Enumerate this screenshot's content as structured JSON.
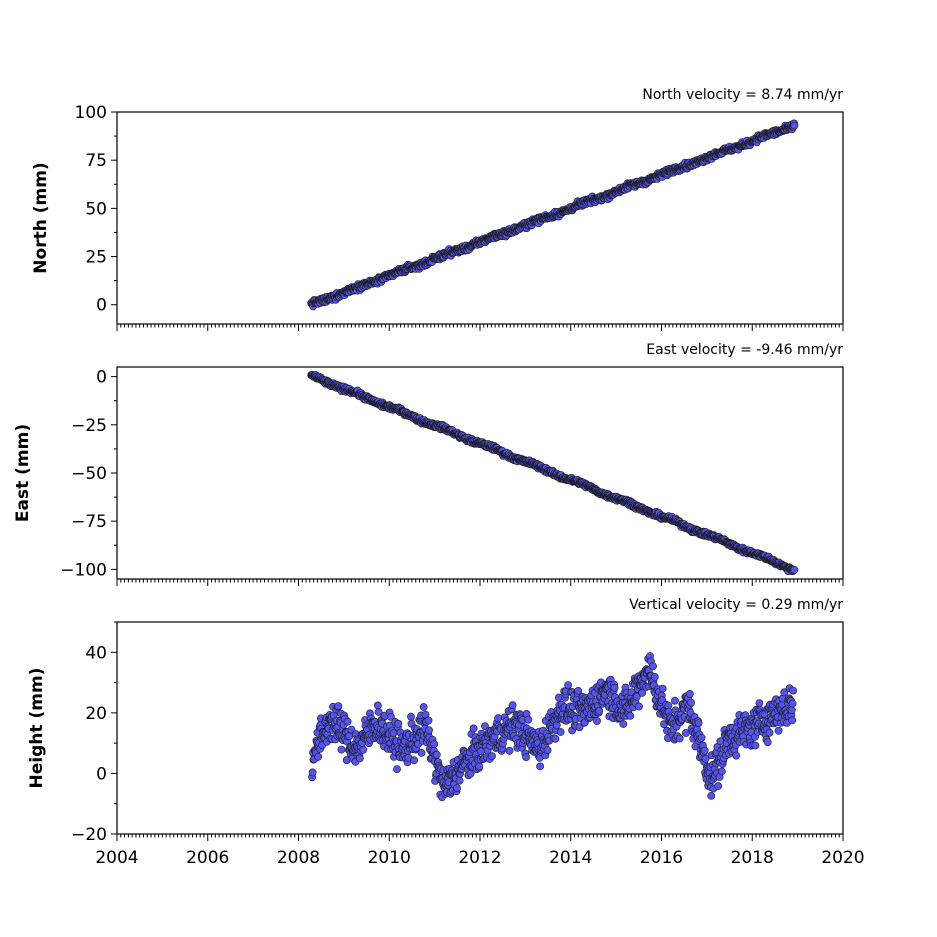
{
  "chart_data": [
    {
      "type": "scatter",
      "title": "North velocity = 8.74 mm/yr",
      "ylabel": "North (mm)",
      "xlabel": "",
      "xlim": [
        2004,
        2020
      ],
      "ylim": [
        -10,
        100
      ],
      "yticks": [
        0,
        25,
        50,
        75,
        100
      ],
      "ytick_labels": [
        "0",
        "25",
        "50",
        "75",
        "100"
      ],
      "grid": false,
      "marker_color": "#5555ee",
      "trend": {
        "x_start": 2008.28,
        "x_end": 2018.93,
        "y_start": 0.0,
        "slope": 8.74
      },
      "noise_amplitude": 1.5,
      "seasonal_amplitude": 0.4,
      "n_points": 1000
    },
    {
      "type": "scatter",
      "title": "East velocity = -9.46 mm/yr",
      "ylabel": "East (mm)",
      "xlabel": "",
      "xlim": [
        2004,
        2020
      ],
      "ylim": [
        -105,
        5
      ],
      "yticks": [
        0,
        -25,
        -50,
        -75,
        -100
      ],
      "ytick_labels": [
        "0",
        "−25",
        "−50",
        "−75",
        "−100"
      ],
      "grid": false,
      "marker_color": "#5555ee",
      "trend": {
        "x_start": 2008.28,
        "x_end": 2018.93,
        "y_start": 0.5,
        "slope": -9.46
      },
      "noise_amplitude": 1.2,
      "seasonal_amplitude": 0.5,
      "n_points": 1000
    },
    {
      "type": "scatter",
      "title": "Vertical velocity = 0.29 mm/yr",
      "ylabel": "Height (mm)",
      "xlabel": "",
      "xlim": [
        2004,
        2020
      ],
      "ylim": [
        -20,
        50
      ],
      "yticks": [
        -20,
        0,
        20,
        40
      ],
      "ytick_labels": [
        "−20",
        "0",
        "20",
        "40"
      ],
      "xticks": [
        2004,
        2006,
        2008,
        2010,
        2012,
        2014,
        2016,
        2018,
        2020
      ],
      "xtick_labels": [
        "2004",
        "2006",
        "2008",
        "2010",
        "2012",
        "2014",
        "2016",
        "2018",
        "2020"
      ],
      "grid": false,
      "marker_color": "#5555ee",
      "envelope": {
        "x": [
          2008.3,
          2008.7,
          2009.3,
          2009.7,
          2010.3,
          2010.8,
          2011.2,
          2011.7,
          2012.3,
          2012.8,
          2013.3,
          2013.8,
          2014.3,
          2014.8,
          2015.2,
          2015.7,
          2016.2,
          2016.6,
          2017.1,
          2017.5,
          2018.0,
          2018.5,
          2018.9
        ],
        "y": [
          5,
          18,
          8,
          17,
          8,
          15,
          -5,
          4,
          12,
          16,
          8,
          22,
          20,
          28,
          20,
          35,
          15,
          22,
          -2,
          12,
          15,
          20,
          23
        ]
      },
      "noise_amplitude": 5.5,
      "n_points": 1100
    }
  ]
}
